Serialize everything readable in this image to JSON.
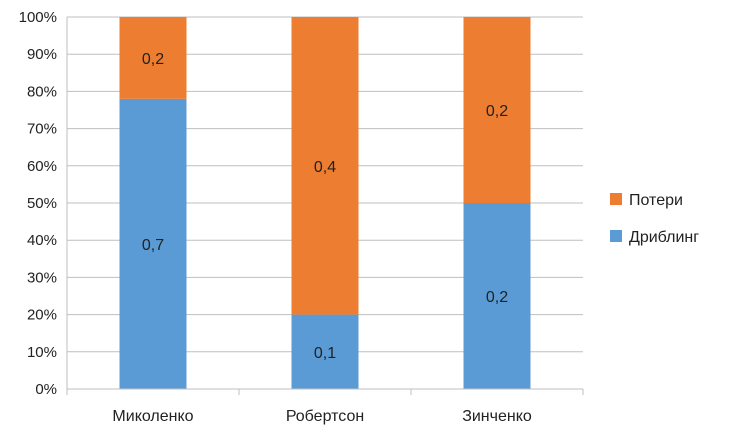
{
  "chart_data": {
    "type": "bar",
    "stacking": "percent",
    "categories": [
      "Миколенко",
      "Робертсон",
      "Зинченко"
    ],
    "series": [
      {
        "name": "Дриблинг",
        "values": [
          0.7,
          0.1,
          0.2
        ],
        "share_percent": [
          78,
          20,
          50
        ],
        "labels": [
          "0,7",
          "0,1",
          "0,2"
        ],
        "color": "#5B9BD5"
      },
      {
        "name": "Потери",
        "values": [
          0.2,
          0.4,
          0.2
        ],
        "share_percent": [
          22,
          80,
          50
        ],
        "labels": [
          "0,2",
          "0,4",
          "0,2"
        ],
        "color": "#ED7D31"
      }
    ],
    "ylim": [
      0,
      100
    ],
    "yticks": [
      "0%",
      "10%",
      "20%",
      "30%",
      "40%",
      "50%",
      "60%",
      "70%",
      "80%",
      "90%",
      "100%"
    ],
    "grid": true,
    "legend": "right",
    "legend_order": [
      "Потери",
      "Дриблинг"
    ]
  }
}
